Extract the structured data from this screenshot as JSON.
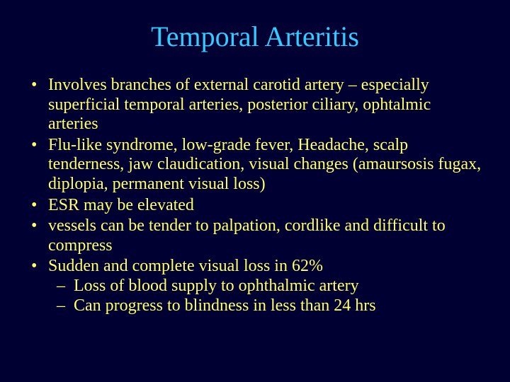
{
  "colors": {
    "background": "#000033",
    "title": "#33ccff",
    "body": "#ffff66"
  },
  "title": "Temporal Arteritis",
  "bullets": [
    "Involves branches of external carotid artery – especially superficial temporal arteries, posterior ciliary, ophtalmic arteries",
    "Flu-like syndrome, low-grade fever, Headache, scalp tenderness, jaw claudication, visual changes (amaursosis fugax, diplopia, permanent visual loss)",
    "ESR may be elevated",
    "vessels can be tender to palpation, cordlike and difficult to compress",
    "Sudden and complete visual loss in 62%"
  ],
  "subbullets": [
    "Loss of blood supply to ophthalmic artery",
    "Can progress to blindness in less than 24 hrs"
  ]
}
